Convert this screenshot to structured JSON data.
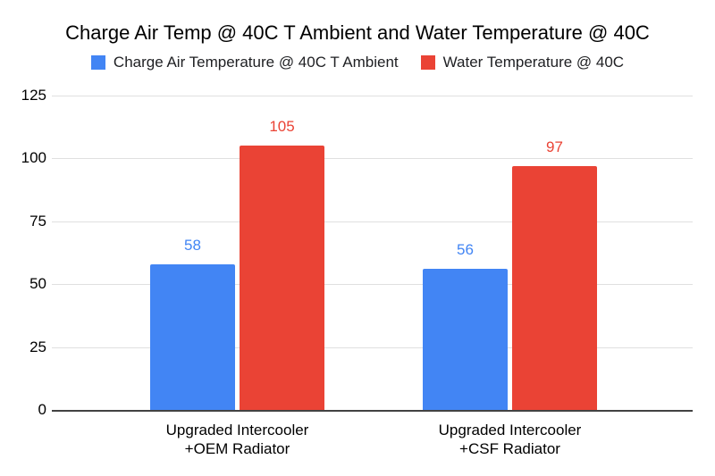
{
  "chart_data": {
    "type": "bar",
    "title": "Charge Air Temp @ 40C T Ambient and Water Temperature @ 40C",
    "categories": [
      "Upgraded Intercooler\n+OEM Radiator",
      "Upgraded Intercooler\n+CSF Radiator"
    ],
    "series": [
      {
        "name": "Charge Air Temperature @ 40C T Ambient",
        "color": "#4285f4",
        "values": [
          58,
          56
        ]
      },
      {
        "name": "Water Temperature @ 40C",
        "color": "#ea4335",
        "values": [
          105,
          97
        ]
      }
    ],
    "ylim": [
      0,
      125
    ],
    "yticks": [
      0,
      25,
      50,
      75,
      100,
      125
    ],
    "xlabel": "",
    "ylabel": "",
    "grid": true,
    "legend_position": "top",
    "data_labels": true
  },
  "colors": {
    "background": "#ffffff",
    "gridline": "#e0e0e0",
    "axis_line": "#424242",
    "title_text": "#000000",
    "legend_text": "#202124"
  }
}
